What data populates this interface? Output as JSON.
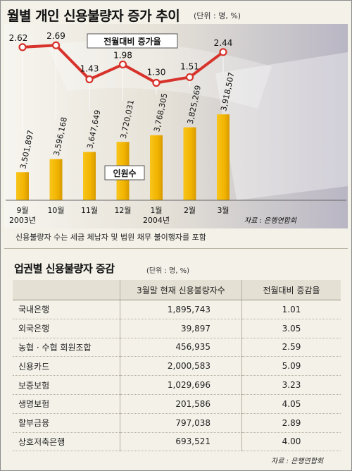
{
  "title": "월별 개인 신용불량자 증가 추이",
  "unit": "(단위 : 명, %)",
  "chart_data": {
    "type": "bar+line",
    "categories": [
      "9월",
      "10월",
      "11월",
      "12월",
      "1월",
      "2월",
      "3월"
    ],
    "year_labels": [
      "2003년",
      "2004년"
    ],
    "series": [
      {
        "name": "인원수",
        "type": "bar",
        "values": [
          3501897,
          3596168,
          3647649,
          3720031,
          3768305,
          3825269,
          3918507
        ],
        "labels": [
          "3,501,897",
          "3,596,168",
          "3,647,649",
          "3,720,031",
          "3,768,305",
          "3,825,269",
          "3,918,507"
        ]
      },
      {
        "name": "전월대비 증가율",
        "type": "line",
        "values": [
          2.62,
          2.69,
          1.43,
          1.98,
          1.3,
          1.51,
          2.44
        ],
        "labels": [
          "2.62",
          "2.69",
          "1.43",
          "1.98",
          "1.30",
          "1.51",
          "2.44"
        ]
      }
    ],
    "bar_color": "#f2b400",
    "line_color": "#d7322b",
    "source": "자료 : 은행연합회"
  },
  "note": "신용불량자 수는 세금 체납자 및 법원 채무 불이행자를 포함",
  "table": {
    "title": "업권별 신용불량자 증감",
    "unit": "(단위 : 명, %)",
    "headers": [
      "",
      "3월말 현재 신용불량자수",
      "전월대비 증감율"
    ],
    "rows": [
      [
        "국내은행",
        "1,895,743",
        "1.01"
      ],
      [
        "외국은행",
        "39,897",
        "3.05"
      ],
      [
        "농협 · 수협 회원조합",
        "456,935",
        "2.59"
      ],
      [
        "신용카드",
        "2,000,583",
        "5.09"
      ],
      [
        "보증보험",
        "1,029,696",
        "3.23"
      ],
      [
        "생명보험",
        "201,586",
        "4.05"
      ],
      [
        "할부금융",
        "797,038",
        "2.89"
      ],
      [
        "상호저축은행",
        "693,521",
        "4.00"
      ]
    ],
    "source": "자료 : 은행연합회"
  }
}
